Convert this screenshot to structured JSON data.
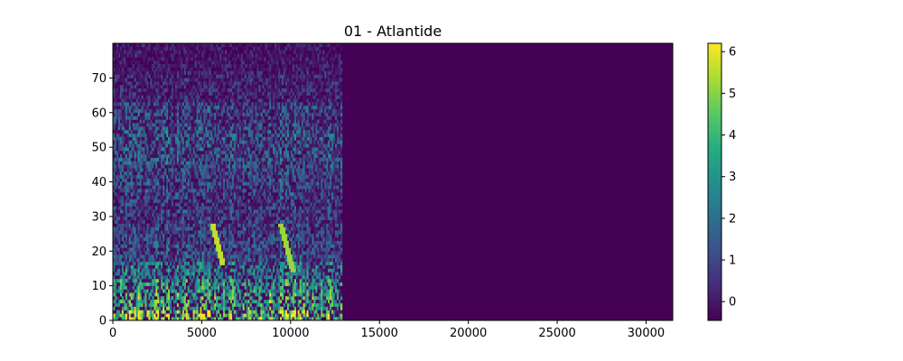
{
  "chart_data": {
    "type": "heatmap",
    "title": "01 - Atlantide",
    "xlabel": "",
    "ylabel": "",
    "xlim": [
      0,
      31500
    ],
    "ylim": [
      0,
      80
    ],
    "x_ticks": [
      0,
      5000,
      10000,
      15000,
      20000,
      25000,
      30000
    ],
    "y_ticks": [
      0,
      10,
      20,
      30,
      40,
      50,
      60,
      70
    ],
    "colormap": "viridis",
    "colorbar": {
      "range": [
        -0.45,
        6.2
      ],
      "ticks": [
        0,
        1,
        2,
        3,
        4,
        5,
        6
      ]
    },
    "grid": false,
    "data_extent_x": 12900,
    "rows": 80,
    "background_value": -0.45,
    "bands": [
      {
        "y": [
          0,
          3
        ],
        "value": 4.6
      },
      {
        "y": [
          3,
          8
        ],
        "value": 3.6
      },
      {
        "y": [
          8,
          12
        ],
        "value": 3.1
      },
      {
        "y": [
          12,
          17
        ],
        "value": 2.3
      },
      {
        "y": [
          17,
          25
        ],
        "value": 1.3
      },
      {
        "y": [
          25,
          36
        ],
        "value": 1.0
      },
      {
        "y": [
          36,
          45
        ],
        "value": 1.2
      },
      {
        "y": [
          45,
          52
        ],
        "value": 1.5
      },
      {
        "y": [
          52,
          56
        ],
        "value": 1.6
      },
      {
        "y": [
          56,
          63
        ],
        "value": 1.2
      },
      {
        "y": [
          63,
          72
        ],
        "value": 0.3
      },
      {
        "y": [
          72,
          80
        ],
        "value": -0.2
      }
    ],
    "features": [
      {
        "x": [
          5600,
          6100
        ],
        "y": [
          16,
          27
        ],
        "value": 5.6
      },
      {
        "x": [
          9400,
          10100
        ],
        "y": [
          14,
          27
        ],
        "value": 5.2
      }
    ]
  }
}
